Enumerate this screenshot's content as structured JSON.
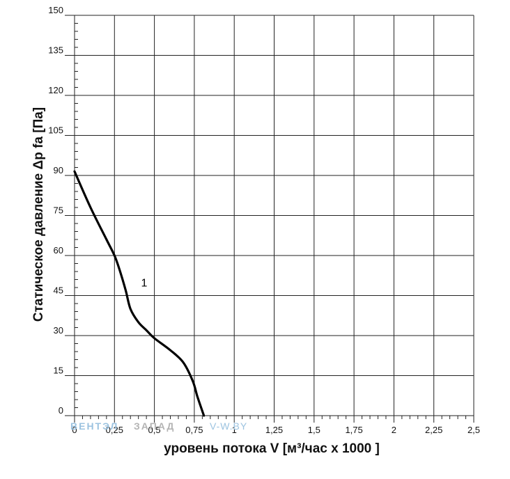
{
  "chart_data": {
    "type": "line",
    "xlabel": "уровень потока  V [м³/час x 1000 ]",
    "ylabel": "Статическое давление  Δp fa [Па]",
    "x_ticks": [
      "0",
      "0,25",
      "0,5",
      "0,75",
      "1",
      "1,25",
      "1,5",
      "1,75",
      "2",
      "2,25",
      "2,5"
    ],
    "y_ticks": [
      "0",
      "15",
      "30",
      "45",
      "60",
      "75",
      "90",
      "105",
      "120",
      "135",
      "150"
    ],
    "xlim": [
      0,
      2.5
    ],
    "ylim": [
      0,
      150
    ],
    "grid": true,
    "series": [
      {
        "name": "1",
        "points": [
          [
            0,
            91.5
          ],
          [
            0.1,
            78
          ],
          [
            0.2,
            66
          ],
          [
            0.25,
            60
          ],
          [
            0.28,
            55
          ],
          [
            0.32,
            47
          ],
          [
            0.35,
            40
          ],
          [
            0.4,
            35
          ],
          [
            0.45,
            32
          ],
          [
            0.5,
            29
          ],
          [
            0.6,
            24.5
          ],
          [
            0.68,
            20
          ],
          [
            0.74,
            13
          ],
          [
            0.77,
            7
          ],
          [
            0.81,
            0
          ]
        ]
      }
    ]
  },
  "watermark": {
    "part1": "ВЕНТЭЛ",
    "part2": "ЗАПАД",
    "part3": "V-W.BY",
    "color_blue": "#9cc3e0",
    "color_gray": "#b4b4b4"
  }
}
